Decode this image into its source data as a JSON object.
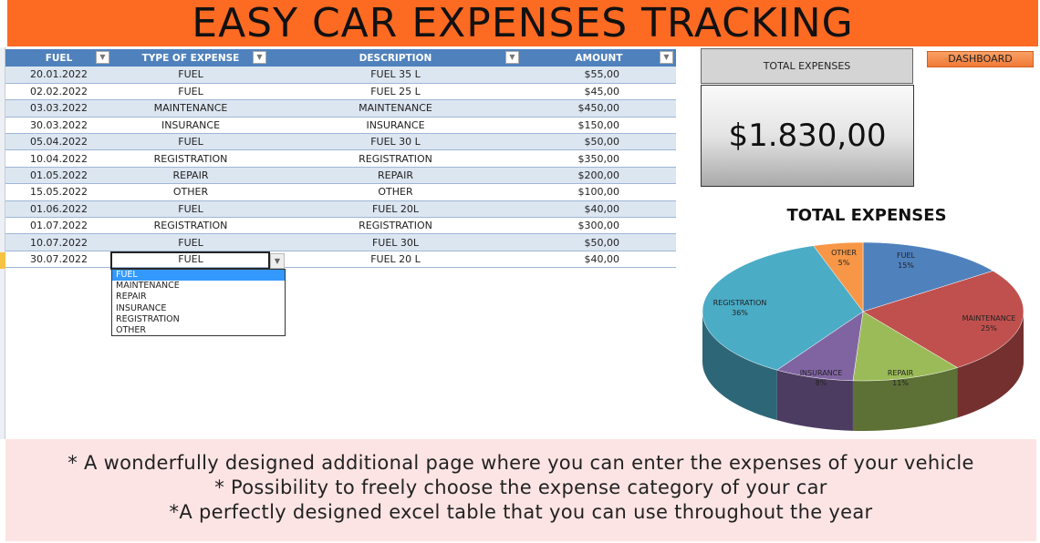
{
  "title": "EASY CAR EXPENSES TRACKING",
  "table": {
    "headers": [
      "FUEL",
      "TYPE OF EXPENSE",
      "DESCRIPTION",
      "AMOUNT"
    ],
    "rows": [
      [
        "20.01.2022",
        "FUEL",
        "FUEL 35 L",
        "$55,00"
      ],
      [
        "02.02.2022",
        "FUEL",
        "FUEL 25 L",
        "$45,00"
      ],
      [
        "03.03.2022",
        "MAINTENANCE",
        "MAINTENANCE",
        "$450,00"
      ],
      [
        "30.03.2022",
        "INSURANCE",
        "INSURANCE",
        "$150,00"
      ],
      [
        "05.04.2022",
        "FUEL",
        "FUEL 30 L",
        "$50,00"
      ],
      [
        "10.04.2022",
        "REGISTRATION",
        "REGISTRATION",
        "$350,00"
      ],
      [
        "01.05.2022",
        "REPAIR",
        "REPAIR",
        "$200,00"
      ],
      [
        "15.05.2022",
        "OTHER",
        "OTHER",
        "$100,00"
      ],
      [
        "01.06.2022",
        "FUEL",
        "FUEL 20L",
        "$40,00"
      ],
      [
        "01.07.2022",
        "REGISTRATION",
        "REGISTRATION",
        "$300,00"
      ],
      [
        "10.07.2022",
        "FUEL",
        "FUEL 30L",
        "$50,00"
      ],
      [
        "30.07.2022",
        "FUEL",
        "FUEL 20 L",
        "$40,00"
      ]
    ]
  },
  "dropdown": {
    "selected": "FUEL",
    "options": [
      "FUEL",
      "MAINTENANCE",
      "REPAIR",
      "INSURANCE",
      "REGISTRATION",
      "OTHER"
    ]
  },
  "total": {
    "label": "TOTAL EXPENSES",
    "value": "$1.830,00"
  },
  "dashboard_label": "DASHBOARD",
  "chart_data": {
    "type": "pie",
    "title": "TOTAL EXPENSES",
    "style": "3d",
    "categories": [
      "FUEL",
      "MAINTENANCE",
      "REPAIR",
      "INSURANCE",
      "REGISTRATION",
      "OTHER"
    ],
    "values": [
      15,
      25,
      11,
      8,
      36,
      5
    ],
    "labels": [
      "15%",
      "25%",
      "11%",
      "8%",
      "36%",
      "5%"
    ],
    "colors": [
      "#4f81bd",
      "#c0504d",
      "#9bbb59",
      "#8064a2",
      "#4bacc6",
      "#f79646"
    ]
  },
  "info": [
    "* A wonderfully designed additional page where you can enter the expenses of your vehicle",
    "* Possibility to freely choose the expense category of your car",
    "*A perfectly designed excel table that you can use throughout the year"
  ]
}
